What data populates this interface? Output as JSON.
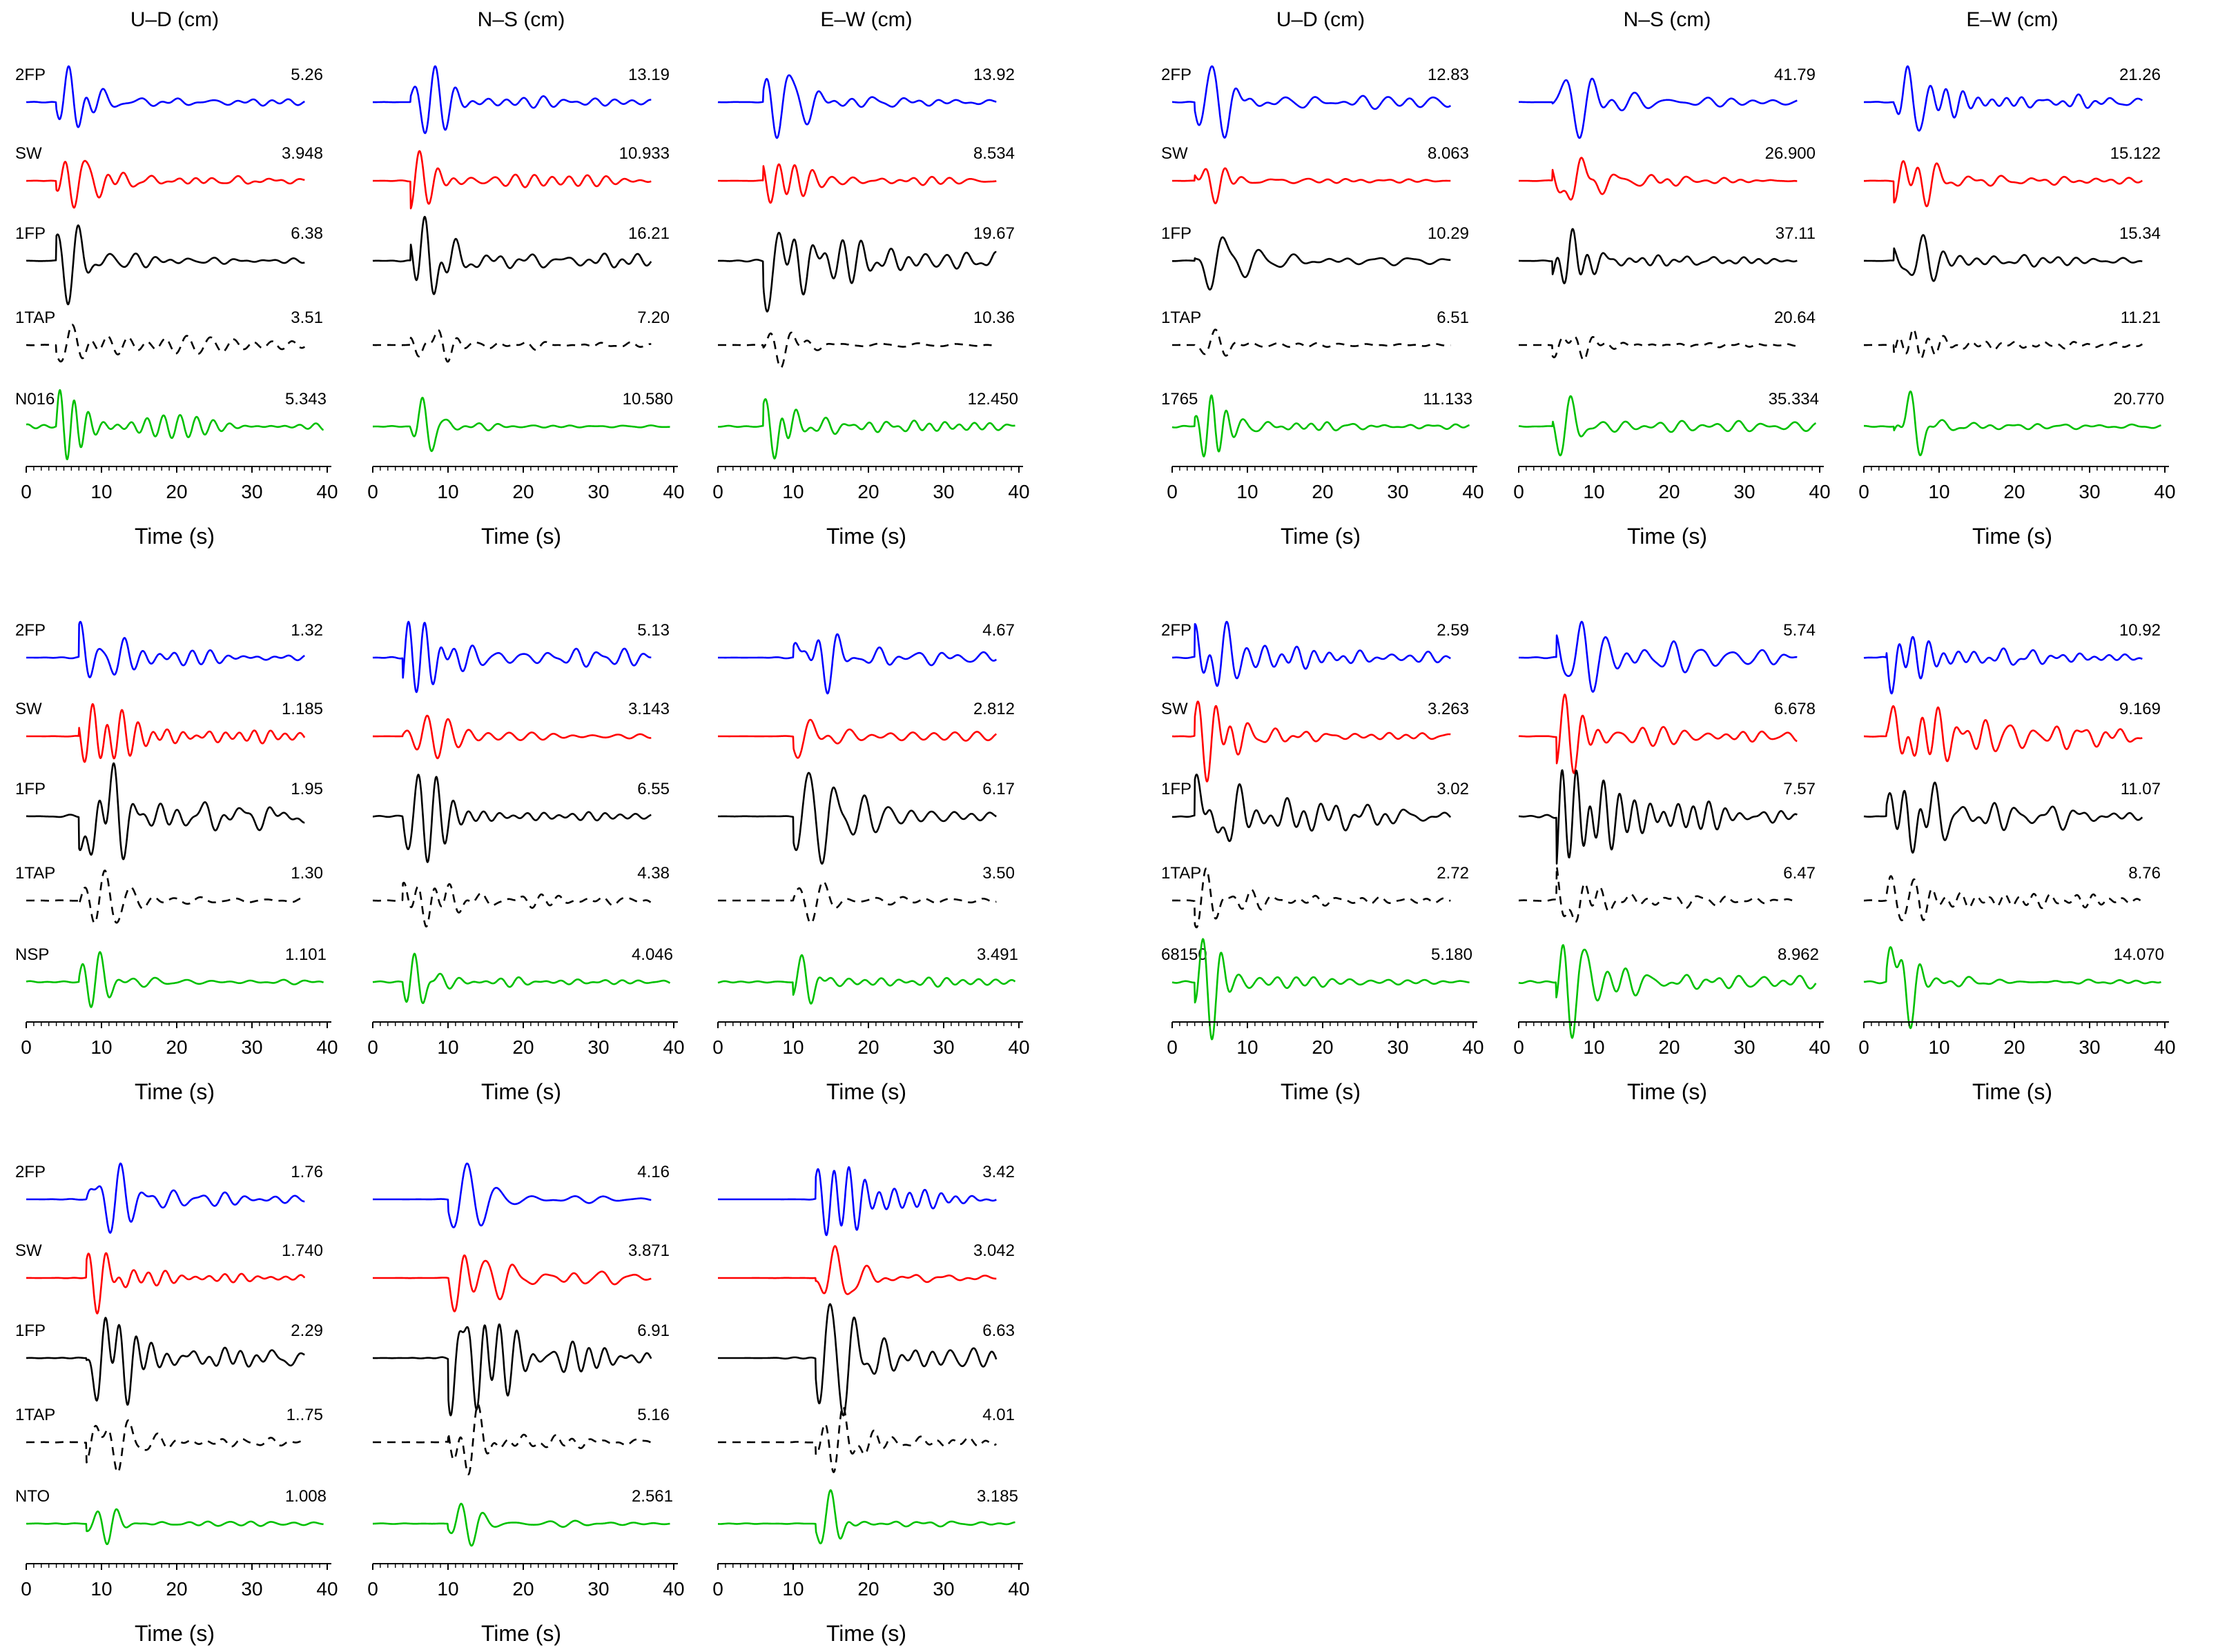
{
  "colors": {
    "2FP": "#0000ff",
    "SW": "#ff0000",
    "1FP": "#000000",
    "1TAP": "#000000",
    "recorded": "#00c000"
  },
  "chart_data": {
    "type": "line",
    "column_headers": [
      "U–D (cm)",
      "N–S (cm)",
      "E–W (cm)"
    ],
    "trace_labels": [
      "2FP",
      "SW",
      "1FP",
      "1TAP"
    ],
    "x_axis": {
      "label": "Time (s)",
      "ticks": [
        0,
        10,
        20,
        30,
        40
      ],
      "minor_step": 1,
      "xlim": [
        0,
        40
      ]
    },
    "station_groups": [
      {
        "station": "N016",
        "header": true,
        "amplitudes": {
          "U-D": [
            "5.26",
            "3.948",
            "6.38",
            "3.51",
            "5.343"
          ],
          "N-S": [
            "13.19",
            "10.933",
            "16.21",
            "7.20",
            "10.580"
          ],
          "E-W": [
            "13.92",
            "8.534",
            "19.67",
            "10.36",
            "12.450"
          ]
        },
        "peak_times": {
          "U-D": 6,
          "N-S": 7,
          "E-W": 8
        }
      },
      {
        "station": "1765",
        "header": true,
        "amplitudes": {
          "U-D": [
            "12.83",
            "8.063",
            "10.29",
            "6.51",
            "11.133"
          ],
          "N-S": [
            "41.79",
            "26.900",
            "37.11",
            "20.64",
            "35.334"
          ],
          "E-W": [
            "21.26",
            "15.122",
            "15.34",
            "11.21",
            "20.770"
          ]
        },
        "peak_times": {
          "U-D": 5,
          "N-S": 6.5,
          "E-W": 6
        }
      },
      {
        "station": "NSP",
        "header": false,
        "amplitudes": {
          "U-D": [
            "1.32",
            "1.185",
            "1.95",
            "1.30",
            "1.101"
          ],
          "N-S": [
            "5.13",
            "3.143",
            "6.55",
            "4.38",
            "4.046"
          ],
          "E-W": [
            "4.67",
            "2.812",
            "6.17",
            "3.50",
            "3.491"
          ]
        },
        "peak_times": {
          "U-D": 9,
          "N-S": 6,
          "E-W": 12
        }
      },
      {
        "station": "68150",
        "header": false,
        "amplitudes": {
          "U-D": [
            "2.59",
            "3.263",
            "3.02",
            "2.72",
            "5.180"
          ],
          "N-S": [
            "5.74",
            "6.678",
            "7.57",
            "6.47",
            "8.962"
          ],
          "E-W": [
            "10.92",
            "9.169",
            "11.07",
            "8.76",
            "14.070"
          ]
        },
        "peak_times": {
          "U-D": 5,
          "N-S": 7,
          "E-W": 5
        }
      },
      {
        "station": "NTO",
        "header": false,
        "amplitudes": {
          "U-D": [
            "1.76",
            "1.740",
            "2.29",
            "1..75",
            "1.008"
          ],
          "N-S": [
            "4.16",
            "3.871",
            "6.91",
            "5.16",
            "2.561"
          ],
          "E-W": [
            "3.42",
            "3.042",
            "6.63",
            "4.01",
            "3.185"
          ]
        },
        "peak_times": {
          "U-D": 10,
          "N-S": 12,
          "E-W": 15
        }
      }
    ]
  }
}
